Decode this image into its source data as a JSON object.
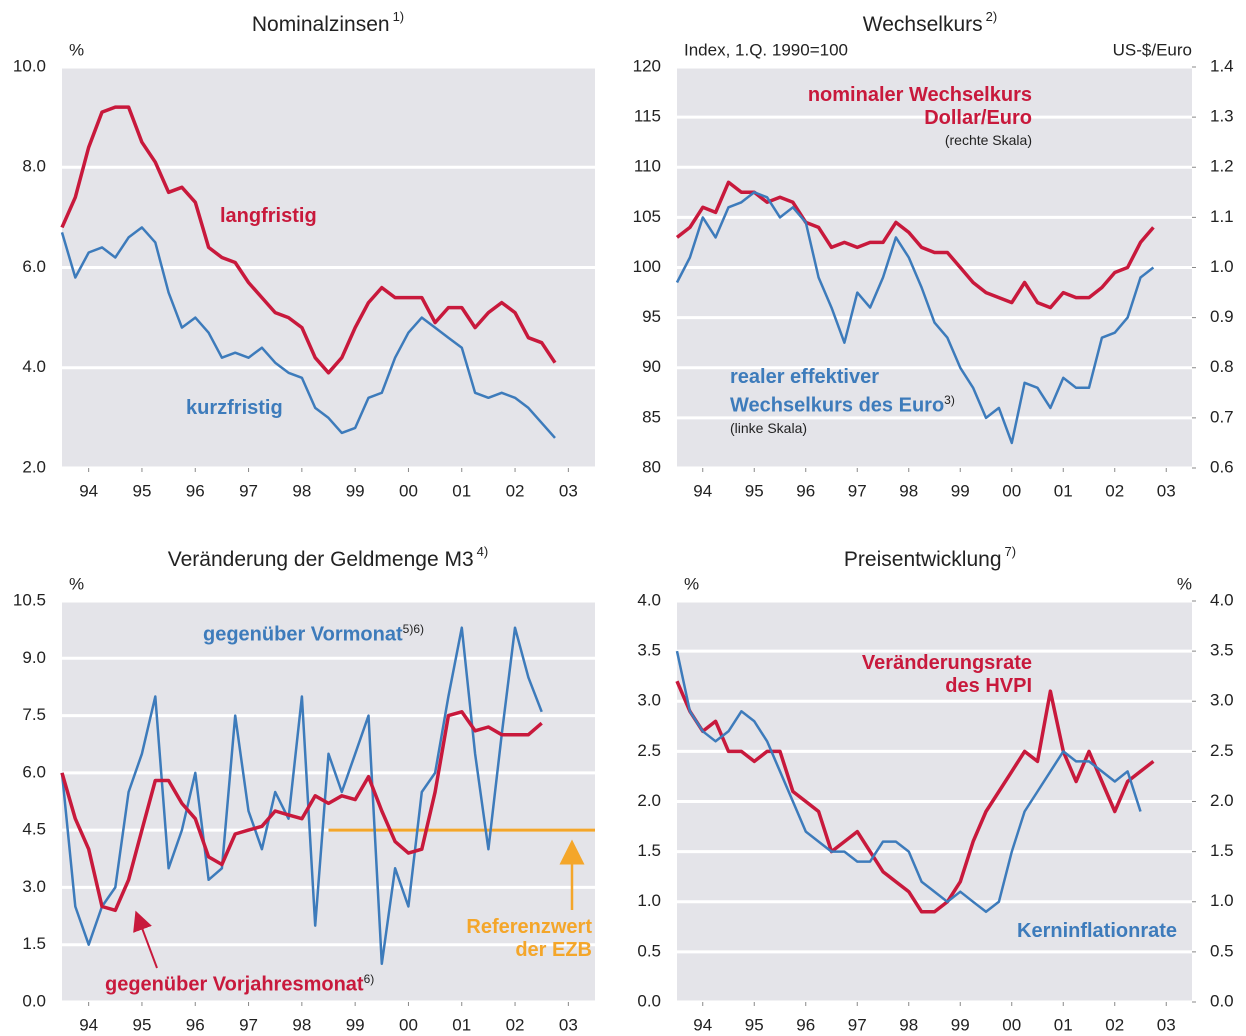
{
  "chart_data": [
    {
      "type": "line",
      "title": "Nominalzinsen",
      "title_note": "1)",
      "unit_left": "%",
      "x": [
        1994,
        1994.25,
        1994.5,
        1994.75,
        1995,
        1995.25,
        1995.5,
        1995.75,
        1996,
        1996.25,
        1996.5,
        1996.75,
        1997,
        1997.25,
        1997.5,
        1997.75,
        1998,
        1998.25,
        1998.5,
        1998.75,
        1999,
        1999.25,
        1999.5,
        1999.75,
        2000,
        2000.25,
        2000.5,
        2000.75,
        2001,
        2001.25,
        2001.5,
        2001.75,
        2002,
        2002.25,
        2002.5,
        2002.75,
        2003,
        2003.25
      ],
      "xlim": [
        1994,
        2004
      ],
      "xticks": [
        {
          "value": 1994.5,
          "label": "94"
        },
        {
          "value": 1995.5,
          "label": "95"
        },
        {
          "value": 1996.5,
          "label": "96"
        },
        {
          "value": 1997.5,
          "label": "97"
        },
        {
          "value": 1998.5,
          "label": "98"
        },
        {
          "value": 1999.5,
          "label": "99"
        },
        {
          "value": 2000.5,
          "label": "00"
        },
        {
          "value": 2001.5,
          "label": "01"
        },
        {
          "value": 2002.5,
          "label": "02"
        },
        {
          "value": 2003.5,
          "label": "03"
        }
      ],
      "ylim": [
        2,
        10
      ],
      "yticks": [
        {
          "value": 2,
          "label": "2.0"
        },
        {
          "value": 4,
          "label": "4.0"
        },
        {
          "value": 6,
          "label": "6.0"
        },
        {
          "value": 8,
          "label": "8.0"
        },
        {
          "value": 10,
          "label": "10.0"
        }
      ],
      "series": [
        {
          "name": "langfristig",
          "color": "#c8193c",
          "values": [
            6.8,
            7.4,
            8.4,
            9.1,
            9.2,
            9.2,
            8.5,
            8.1,
            7.5,
            7.6,
            7.3,
            6.4,
            6.2,
            6.1,
            5.7,
            5.4,
            5.1,
            5.0,
            4.8,
            4.2,
            3.9,
            4.2,
            4.8,
            5.3,
            5.6,
            5.4,
            5.4,
            5.4,
            4.9,
            5.2,
            5.2,
            4.8,
            5.1,
            5.3,
            5.1,
            4.6,
            4.5,
            4.1
          ]
        },
        {
          "name": "kurzfristig",
          "color": "#3d7bbb",
          "values": [
            6.7,
            5.8,
            6.3,
            6.4,
            6.2,
            6.6,
            6.8,
            6.5,
            5.5,
            4.8,
            5.0,
            4.7,
            4.2,
            4.3,
            4.2,
            4.4,
            4.1,
            3.9,
            3.8,
            3.2,
            3.0,
            2.7,
            2.8,
            3.4,
            3.5,
            4.2,
            4.7,
            5.0,
            4.8,
            4.6,
            4.4,
            3.5,
            3.4,
            3.5,
            3.4,
            3.2,
            2.9,
            2.6
          ]
        }
      ]
    },
    {
      "type": "line",
      "title": "Wechselkurs",
      "title_note": "2)",
      "unit_left": "Index, 1.Q. 1990=100",
      "unit_right": "US-$/Euro",
      "x": [
        1994,
        1994.25,
        1994.5,
        1994.75,
        1995,
        1995.25,
        1995.5,
        1995.75,
        1996,
        1996.25,
        1996.5,
        1996.75,
        1997,
        1997.25,
        1997.5,
        1997.75,
        1998,
        1998.25,
        1998.5,
        1998.75,
        1999,
        1999.25,
        1999.5,
        1999.75,
        2000,
        2000.25,
        2000.5,
        2000.75,
        2001,
        2001.25,
        2001.5,
        2001.75,
        2002,
        2002.25,
        2002.5,
        2002.75,
        2003,
        2003.25
      ],
      "xlim": [
        1994,
        2004
      ],
      "xticks": [
        {
          "value": 1994.5,
          "label": "94"
        },
        {
          "value": 1995.5,
          "label": "95"
        },
        {
          "value": 1996.5,
          "label": "96"
        },
        {
          "value": 1997.5,
          "label": "97"
        },
        {
          "value": 1998.5,
          "label": "98"
        },
        {
          "value": 1999.5,
          "label": "99"
        },
        {
          "value": 2000.5,
          "label": "00"
        },
        {
          "value": 2001.5,
          "label": "01"
        },
        {
          "value": 2002.5,
          "label": "02"
        },
        {
          "value": 2003.5,
          "label": "03"
        }
      ],
      "ylim": [
        80,
        120
      ],
      "yticks": [
        80,
        85,
        90,
        95,
        100,
        105,
        110,
        115,
        120
      ],
      "y2lim": [
        0.6,
        1.4
      ],
      "y2ticks": [
        0.6,
        0.7,
        0.8,
        0.9,
        {
          "value": 1,
          "label": "1.0"
        },
        1.1,
        1.2,
        1.3,
        1.4
      ],
      "series": [
        {
          "name": "nominaler Wechselkurs Dollar/Euro",
          "note": "(rechte Skala)",
          "color": "#c8193c",
          "axis": "y2",
          "values": [
            1.06,
            1.08,
            1.12,
            1.11,
            1.17,
            1.15,
            1.15,
            1.13,
            1.14,
            1.13,
            1.09,
            1.08,
            1.04,
            1.05,
            1.04,
            1.05,
            1.05,
            1.09,
            1.07,
            1.04,
            1.03,
            1.03,
            1.0,
            0.97,
            0.95,
            0.94,
            0.93,
            0.97,
            0.93,
            0.92,
            0.95,
            0.94,
            0.94,
            0.96,
            0.99,
            1.0,
            1.05,
            1.08
          ]
        },
        {
          "name": "realer effektiver Wechselkurs des Euro",
          "name_note": "3)",
          "note": "(linke Skala)",
          "color": "#3d7bbb",
          "values": [
            98.5,
            101,
            105,
            103,
            106,
            106.5,
            107.5,
            107,
            105,
            106,
            104.5,
            99,
            96,
            92.5,
            97.5,
            96,
            99,
            103,
            101,
            98,
            94.5,
            93,
            90,
            88,
            85,
            86,
            82.5,
            88.5,
            88,
            86,
            89,
            88,
            88,
            93,
            93.5,
            95,
            99,
            100
          ]
        }
      ]
    },
    {
      "type": "line",
      "title": "Veränderung der Geldmenge M3",
      "title_note": "4)",
      "unit_left": "%",
      "x": [
        1994,
        1994.25,
        1994.5,
        1994.75,
        1995,
        1995.25,
        1995.5,
        1995.75,
        1996,
        1996.25,
        1996.5,
        1996.75,
        1997,
        1997.25,
        1997.5,
        1997.75,
        1998,
        1998.25,
        1998.5,
        1998.75,
        1999,
        1999.25,
        1999.5,
        1999.75,
        2000,
        2000.25,
        2000.5,
        2000.75,
        2001,
        2001.25,
        2001.5,
        2001.75,
        2002,
        2002.25,
        2002.5,
        2002.75,
        2003,
        2003.25
      ],
      "xlim": [
        1994,
        2004
      ],
      "xticks": [
        {
          "value": 1994.5,
          "label": "94"
        },
        {
          "value": 1995.5,
          "label": "95"
        },
        {
          "value": 1996.5,
          "label": "96"
        },
        {
          "value": 1997.5,
          "label": "97"
        },
        {
          "value": 1998.5,
          "label": "98"
        },
        {
          "value": 1999.5,
          "label": "99"
        },
        {
          "value": 2000.5,
          "label": "00"
        },
        {
          "value": 2001.5,
          "label": "01"
        },
        {
          "value": 2002.5,
          "label": "02"
        },
        {
          "value": 2003.5,
          "label": "03"
        }
      ],
      "ylim": [
        0,
        10.5
      ],
      "yticks": [
        {
          "value": 0,
          "label": "0.0"
        },
        1.5,
        {
          "value": 3,
          "label": "3.0"
        },
        4.5,
        {
          "value": 6,
          "label": "6.0"
        },
        7.5,
        {
          "value": 9,
          "label": "9.0"
        },
        10.5
      ],
      "series": [
        {
          "name": "gegenüber Vormonat",
          "name_note": "5)6)",
          "color": "#3d7bbb",
          "values": [
            6.0,
            2.5,
            1.5,
            2.5,
            3.0,
            5.5,
            6.5,
            8.0,
            3.5,
            4.5,
            6.0,
            3.2,
            3.5,
            7.5,
            5.0,
            4.0,
            5.5,
            4.8,
            8.0,
            2.0,
            6.5,
            5.5,
            6.5,
            7.5,
            1.0,
            3.5,
            2.5,
            5.5,
            6.0,
            8.0,
            9.8,
            6.5,
            4.0,
            7.0,
            9.8,
            8.5,
            7.6,
            null
          ]
        },
        {
          "name": "gegenüber Vorjahresmonat",
          "name_note": "6)",
          "color": "#c8193c",
          "values": [
            6.0,
            4.8,
            4.0,
            2.5,
            2.4,
            3.2,
            4.5,
            5.8,
            5.8,
            5.2,
            4.8,
            3.8,
            3.6,
            4.4,
            4.5,
            4.6,
            5.0,
            4.9,
            4.8,
            5.4,
            5.2,
            5.4,
            5.3,
            5.9,
            5.0,
            4.2,
            3.9,
            4.0,
            5.5,
            7.5,
            7.6,
            7.1,
            7.2,
            7.0,
            7.0,
            7.0,
            7.3,
            null
          ]
        }
      ],
      "reference": {
        "value": 4.5,
        "x_start": 1999,
        "color": "#f4a62a",
        "label": [
          "Referenzwert",
          "der EZB"
        ]
      }
    },
    {
      "type": "line",
      "title": "Preisentwicklung",
      "title_note": "7)",
      "unit_left": "%",
      "unit_right": "%",
      "x": [
        1994,
        1994.25,
        1994.5,
        1994.75,
        1995,
        1995.25,
        1995.5,
        1995.75,
        1996,
        1996.25,
        1996.5,
        1996.75,
        1997,
        1997.25,
        1997.5,
        1997.75,
        1998,
        1998.25,
        1998.5,
        1998.75,
        1999,
        1999.25,
        1999.5,
        1999.75,
        2000,
        2000.25,
        2000.5,
        2000.75,
        2001,
        2001.25,
        2001.5,
        2001.75,
        2002,
        2002.25,
        2002.5,
        2002.75,
        2003,
        2003.25
      ],
      "xlim": [
        1994,
        2004
      ],
      "xticks": [
        {
          "value": 1994.5,
          "label": "94"
        },
        {
          "value": 1995.5,
          "label": "95"
        },
        {
          "value": 1996.5,
          "label": "96"
        },
        {
          "value": 1997.5,
          "label": "97"
        },
        {
          "value": 1998.5,
          "label": "98"
        },
        {
          "value": 1999.5,
          "label": "99"
        },
        {
          "value": 2000.5,
          "label": "00"
        },
        {
          "value": 2001.5,
          "label": "01"
        },
        {
          "value": 2002.5,
          "label": "02"
        },
        {
          "value": 2003.5,
          "label": "03"
        }
      ],
      "ylim": [
        0,
        4
      ],
      "yticks": [
        {
          "value": 0,
          "label": "0.0"
        },
        0.5,
        {
          "value": 1,
          "label": "1.0"
        },
        1.5,
        {
          "value": 2,
          "label": "2.0"
        },
        2.5,
        {
          "value": 3,
          "label": "3.0"
        },
        3.5,
        {
          "value": 4,
          "label": "4.0"
        }
      ],
      "y2lim": [
        0,
        4
      ],
      "y2ticks": [
        {
          "value": 0,
          "label": "0.0"
        },
        0.5,
        {
          "value": 1,
          "label": "1.0"
        },
        1.5,
        {
          "value": 2,
          "label": "2.0"
        },
        2.5,
        {
          "value": 3,
          "label": "3.0"
        },
        3.5,
        {
          "value": 4,
          "label": "4.0"
        }
      ],
      "series": [
        {
          "name": "Veränderungsrate des HVPI",
          "color": "#c8193c",
          "values": [
            3.2,
            2.9,
            2.7,
            2.8,
            2.5,
            2.5,
            2.4,
            2.5,
            2.5,
            2.1,
            2.0,
            1.9,
            1.5,
            1.6,
            1.7,
            1.5,
            1.3,
            1.2,
            1.1,
            0.9,
            0.9,
            1.0,
            1.2,
            1.6,
            1.9,
            2.1,
            2.3,
            2.5,
            2.4,
            3.1,
            2.5,
            2.2,
            2.5,
            2.2,
            1.9,
            2.2,
            2.3,
            2.4
          ]
        },
        {
          "name": "Kerninflationrate",
          "color": "#3d7bbb",
          "values": [
            3.5,
            2.9,
            2.7,
            2.6,
            2.7,
            2.9,
            2.8,
            2.6,
            2.3,
            2.0,
            1.7,
            1.6,
            1.5,
            1.5,
            1.4,
            1.4,
            1.6,
            1.6,
            1.5,
            1.2,
            1.1,
            1.0,
            1.1,
            1.0,
            0.9,
            1.0,
            1.5,
            1.9,
            2.1,
            2.3,
            2.5,
            2.4,
            2.4,
            2.3,
            2.2,
            2.3,
            1.9,
            null
          ]
        }
      ]
    }
  ]
}
